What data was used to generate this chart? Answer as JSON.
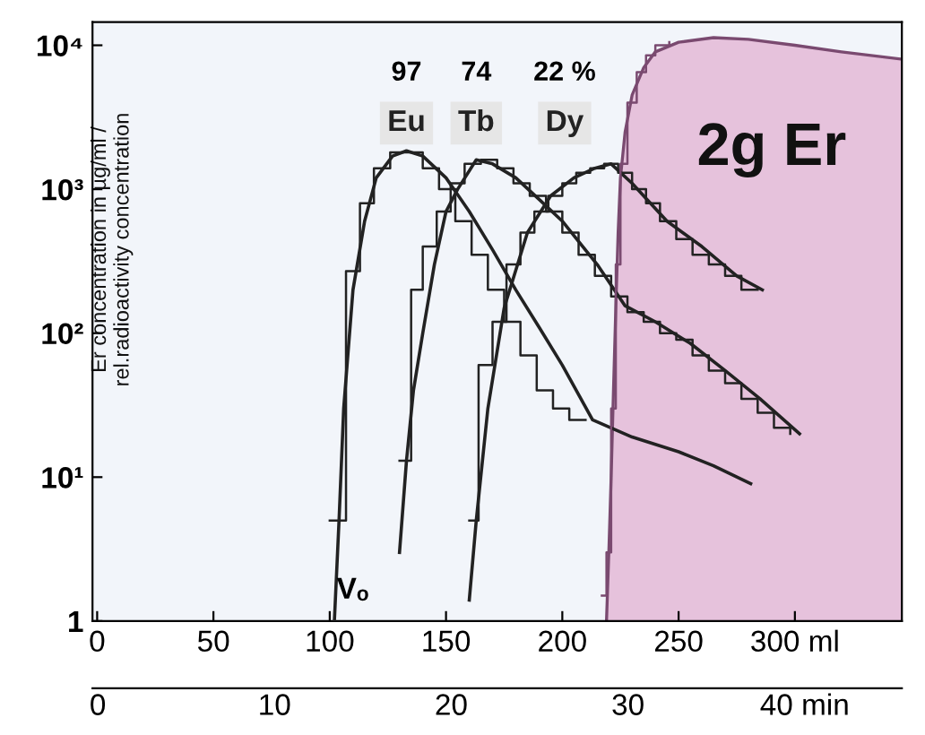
{
  "chart_data": {
    "type": "line",
    "ylabel": "Er concentration in µg/ml /\nrel.radioactivity concentration",
    "log": "y",
    "xlim": [
      -2,
      346
    ],
    "xticks": [
      0,
      50,
      100,
      150,
      200,
      250,
      {
        "value": 300,
        "label": "300 ml"
      }
    ],
    "ylim": [
      1,
      14500
    ],
    "yticks": [
      1,
      {
        "value": 10,
        "label": "10¹"
      },
      {
        "value": 100,
        "label": "10²"
      },
      {
        "value": 1000,
        "label": "10³"
      },
      {
        "value": 10000,
        "label": "10⁴"
      }
    ],
    "x2lim": [
      -0.3,
      45.5
    ],
    "x2ticks": [
      0,
      10,
      20,
      30,
      {
        "value": 40,
        "label": "40 min"
      }
    ],
    "grid": false,
    "legend": false,
    "series": [
      {
        "name": "2g Er",
        "type": "area",
        "color": "#e6c2dc",
        "x": [
          219,
          220,
          221,
          222,
          223,
          224,
          225,
          227,
          230,
          235,
          240,
          250,
          265,
          280,
          300,
          320,
          346
        ],
        "values": [
          1,
          3,
          10,
          40,
          150,
          500,
          1200,
          2500,
          4500,
          7000,
          9000,
          10500,
          11300,
          11000,
          10000,
          9000,
          8000
        ]
      },
      {
        "name": "Eu",
        "color": "#222222",
        "x": [
          102,
          104,
          106,
          110,
          115,
          120,
          127,
          133,
          140,
          150,
          160,
          170,
          180,
          190,
          200,
          213,
          230,
          250,
          265,
          281
        ],
        "values": [
          1,
          5,
          30,
          200,
          600,
          1200,
          1700,
          1850,
          1700,
          1200,
          700,
          380,
          200,
          110,
          60,
          25,
          19,
          15,
          12,
          9
        ]
      },
      {
        "name": "Tb",
        "color": "#222222",
        "x": [
          130,
          133,
          136,
          140,
          145,
          150,
          155,
          163,
          170,
          180,
          190,
          200,
          215,
          227,
          240,
          255,
          270,
          285,
          302
        ],
        "values": [
          3,
          13,
          40,
          100,
          300,
          700,
          1000,
          1600,
          1500,
          1200,
          850,
          600,
          300,
          155,
          120,
          85,
          55,
          35,
          20
        ]
      },
      {
        "name": "Dy",
        "color": "#222222",
        "x": [
          160,
          163,
          168,
          175,
          185,
          195,
          205,
          214,
          221,
          230,
          245,
          260,
          275,
          286
        ],
        "values": [
          1.4,
          5,
          30,
          150,
          500,
          900,
          1200,
          1400,
          1500,
          1100,
          600,
          400,
          250,
          200
        ]
      },
      {
        "type": "step",
        "color": "#222222",
        "x": [
          100,
          107,
          113,
          119,
          126,
          133,
          140,
          147,
          154,
          161,
          168,
          175,
          182,
          189,
          196,
          203,
          210
        ],
        "values": [
          5,
          270,
          800,
          1400,
          1800,
          1800,
          1400,
          1000,
          600,
          350,
          200,
          120,
          70,
          40,
          30,
          25,
          25
        ]
      },
      {
        "type": "step",
        "color": "#222222",
        "x": [
          130,
          135,
          140,
          146,
          152,
          158,
          165,
          172,
          179,
          186,
          193,
          200,
          207,
          214,
          221,
          228,
          235,
          242,
          249,
          256,
          263,
          270,
          277,
          284,
          291,
          298
        ],
        "values": [
          13,
          200,
          400,
          700,
          1100,
          1500,
          1600,
          1400,
          1100,
          900,
          700,
          500,
          350,
          250,
          180,
          140,
          120,
          100,
          90,
          70,
          55,
          45,
          35,
          28,
          22,
          20
        ]
      },
      {
        "type": "step",
        "color": "#222222",
        "x": [
          160,
          164,
          170,
          176,
          182,
          188,
          194,
          200,
          206,
          212,
          218,
          224,
          230,
          236,
          242,
          249,
          256,
          263,
          270,
          277,
          284
        ],
        "values": [
          5,
          60,
          120,
          300,
          500,
          700,
          900,
          1100,
          1300,
          1400,
          1500,
          1300,
          1000,
          800,
          600,
          450,
          350,
          300,
          250,
          200,
          200
        ]
      },
      {
        "type": "step",
        "color": "#7a4a70",
        "x": [
          217,
          219,
          221,
          223,
          225,
          228,
          232,
          236,
          240,
          246
        ],
        "values": [
          1.5,
          3,
          30,
          300,
          1500,
          4000,
          6500,
          8500,
          10000,
          10500
        ]
      }
    ],
    "annotations": [
      "97",
      "74",
      "22 %",
      "Vₒ"
    ]
  }
}
